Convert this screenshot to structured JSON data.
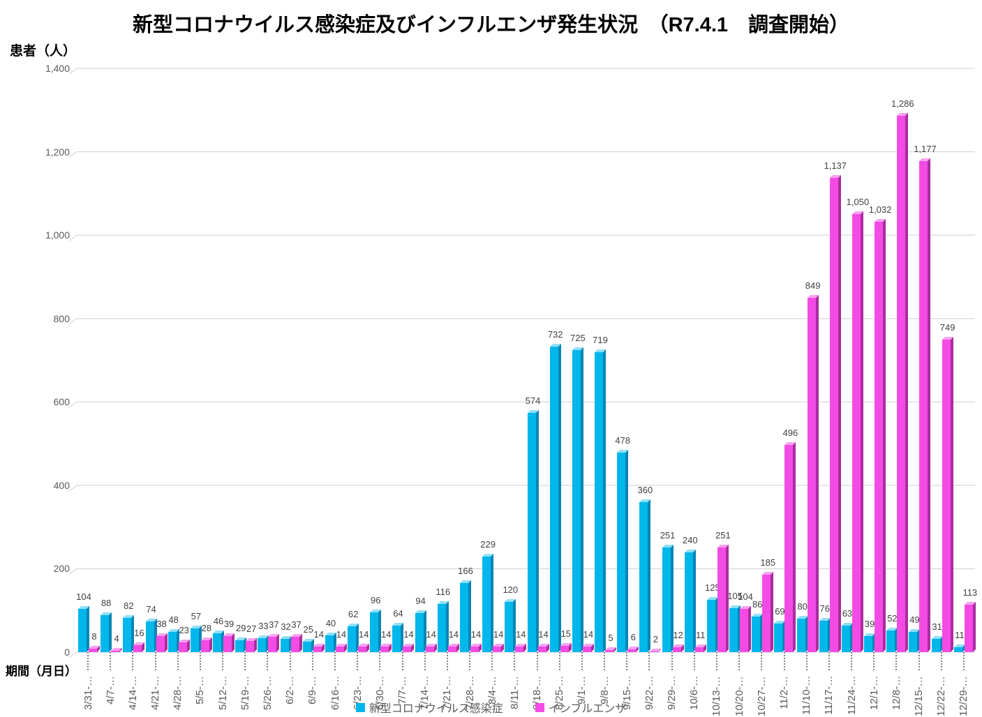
{
  "title": "新型コロナウイルス感染症及びインフルエンザ発生状況　（R7.4.1　調査開始）",
  "y_axis_title": "患者（人）",
  "x_axis_title": "期間（月日）",
  "legend": {
    "covid": "新型コロナウイルス感染症",
    "flu": "インフルエンザ"
  },
  "colors": {
    "covid_front": "#00B7EC",
    "covid_side": "#0A85B5",
    "covid_top": "#8FE0F6",
    "flu_front": "#F34BE4",
    "flu_side": "#AA2DA0",
    "flu_top": "#F9A1F0",
    "gridline": "#D9D9D9",
    "tick_text": "#595959",
    "data_label": "#3F3F3F",
    "leader_dots": "#7F7F7F"
  },
  "chart_data": {
    "type": "bar",
    "title": "新型コロナウイルス感染症及びインフルエンザ発生状況　（R7.4.1　調査開始）",
    "xlabel": "期間（月日）",
    "ylabel": "患者（人）",
    "ylim": [
      0,
      1400
    ],
    "ytick_step": 200,
    "grid": true,
    "legend_position": "bottom",
    "x_tick_suffix": "-…",
    "categories": [
      "3/31",
      "4/7",
      "4/14",
      "4/21",
      "4/28",
      "5/5",
      "5/12",
      "5/19",
      "5/26",
      "6/2",
      "6/9",
      "6/16",
      "6/23",
      "6/30",
      "7/7",
      "7/14",
      "7/21",
      "7/28",
      "8/4",
      "8/11",
      "8/18",
      "8/25",
      "9/1",
      "9/8",
      "9/15",
      "9/22",
      "9/29",
      "10/6",
      "10/13",
      "10/20",
      "10/27",
      "11/2",
      "11/10",
      "11/17",
      "11/24",
      "12/1",
      "12/8",
      "12/15",
      "12/22",
      "12/29"
    ],
    "series": [
      {
        "name": "新型コロナウイルス感染症",
        "color": "#00B7EC",
        "values": [
          104,
          88,
          82,
          74,
          48,
          57,
          46,
          29,
          33,
          32,
          25,
          40,
          62,
          96,
          64,
          94,
          116,
          166,
          229,
          120,
          574,
          732,
          725,
          719,
          478,
          360,
          251,
          240,
          125,
          105,
          86,
          69,
          80,
          76,
          63,
          39,
          52,
          49,
          31,
          11
        ]
      },
      {
        "name": "インフルエンザ",
        "color": "#F34BE4",
        "values": [
          8,
          4,
          16,
          38,
          23,
          28,
          39,
          27,
          37,
          37,
          14,
          14,
          14,
          14,
          14,
          14,
          14,
          14,
          14,
          14,
          14,
          15,
          14,
          5,
          6,
          2,
          12,
          11,
          251,
          104,
          185,
          496,
          849,
          1137,
          1050,
          1032,
          1286,
          1177,
          749,
          113
        ]
      }
    ]
  }
}
